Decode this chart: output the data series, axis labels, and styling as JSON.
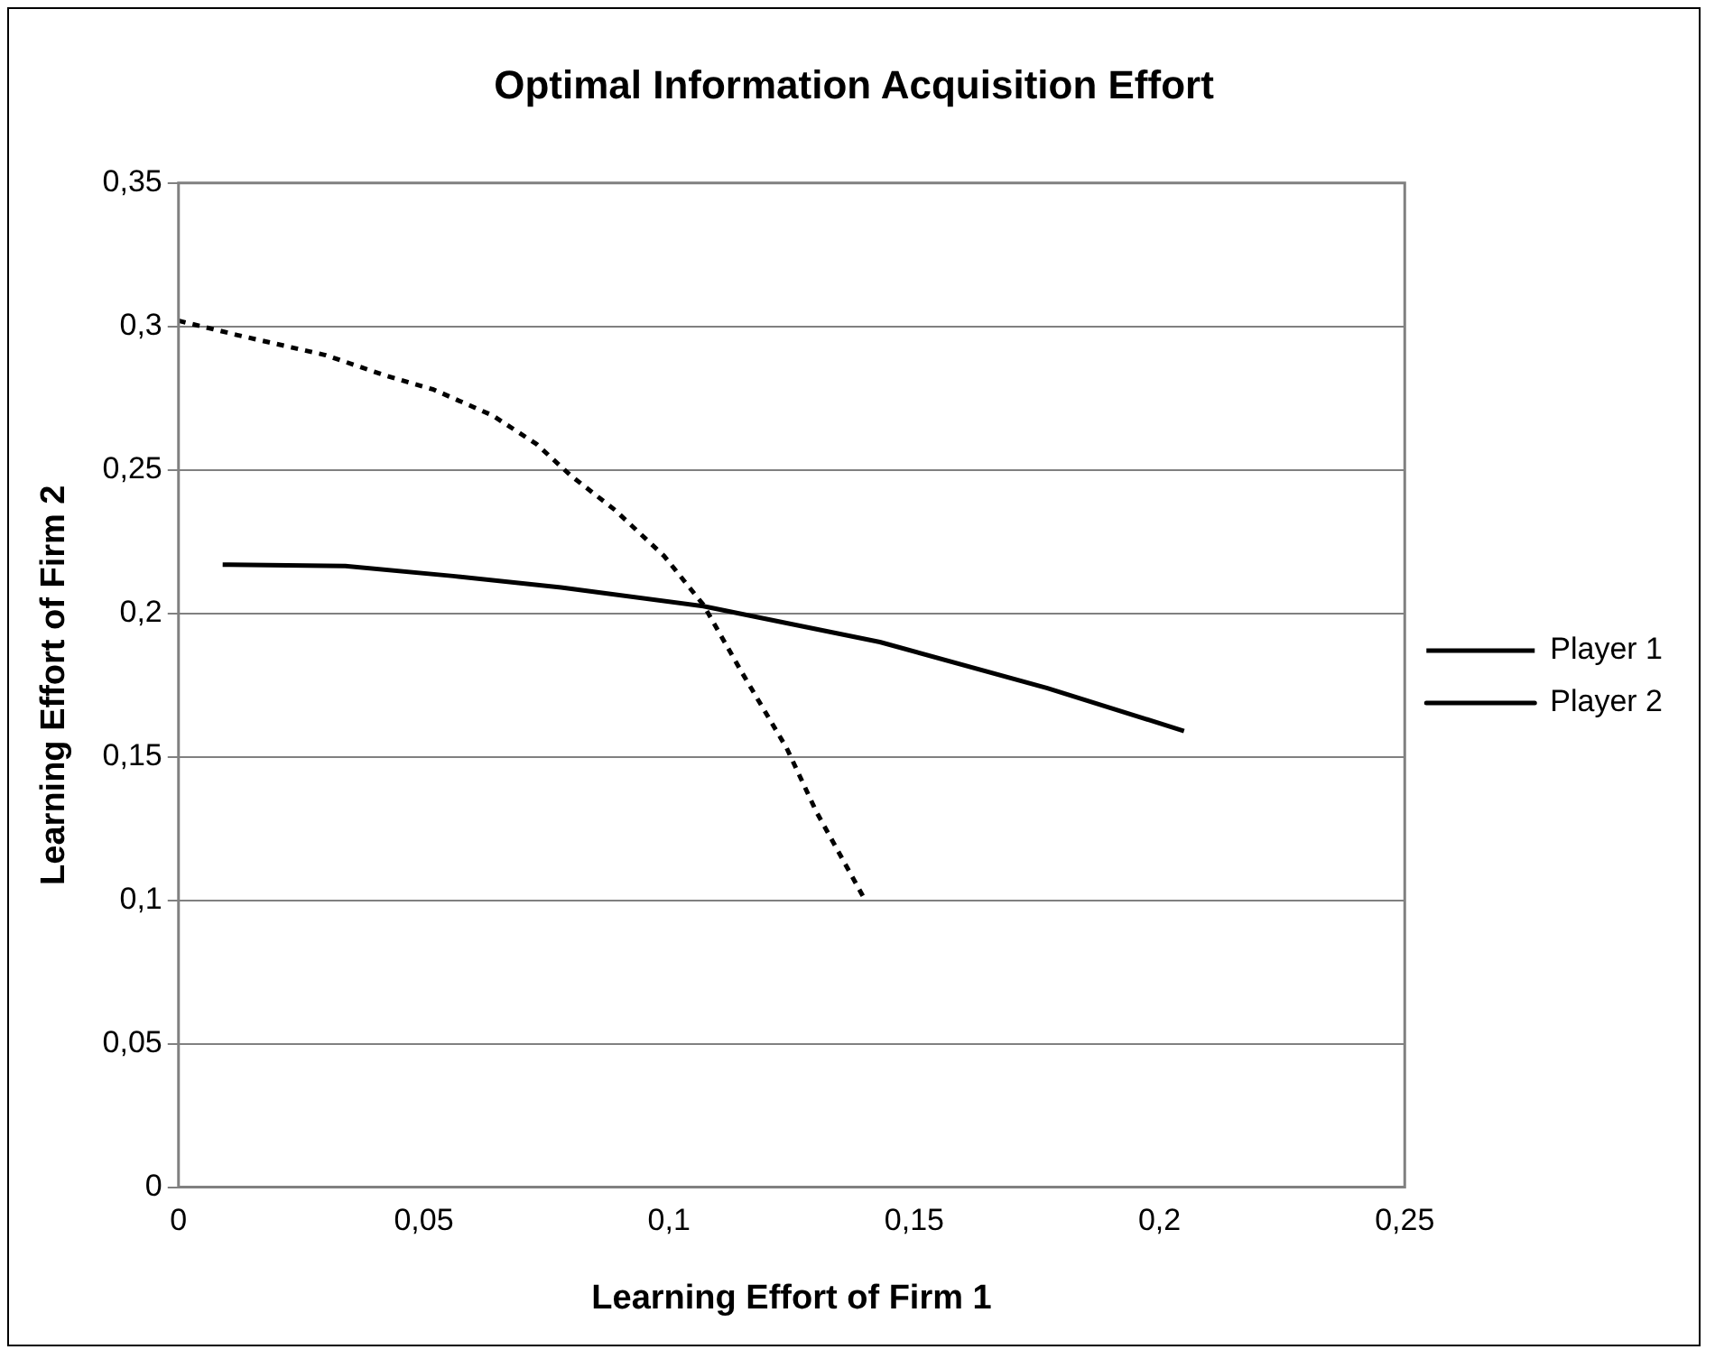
{
  "chart_data": {
    "type": "line",
    "title": "Optimal Information Acquisition Effort",
    "xlabel": "Learning Effort of Firm 1",
    "ylabel": "Learning Effort of Firm 2",
    "xlim": [
      0,
      0.25
    ],
    "xticks": [
      {
        "value": 0,
        "label": "0"
      },
      {
        "value": 0.05,
        "label": "0,05"
      },
      {
        "value": 0.1,
        "label": "0,1"
      },
      {
        "value": 0.15,
        "label": "0,15"
      },
      {
        "value": 0.2,
        "label": "0,2"
      },
      {
        "value": 0.25,
        "label": "0,25"
      }
    ],
    "ylim": [
      0,
      0.35
    ],
    "yticks": [
      {
        "value": 0,
        "label": "0"
      },
      {
        "value": 0.05,
        "label": "0,05"
      },
      {
        "value": 0.1,
        "label": "0,1"
      },
      {
        "value": 0.15,
        "label": "0,15"
      },
      {
        "value": 0.2,
        "label": "0,2"
      },
      {
        "value": 0.25,
        "label": "0,25"
      },
      {
        "value": 0.3,
        "label": "0,3"
      },
      {
        "value": 0.35,
        "label": "0,35"
      }
    ],
    "grid": "y",
    "legend": "right",
    "marker": "none",
    "series": [
      {
        "name": "Player 1",
        "color": "#000000",
        "line_style": "dotted",
        "x": [
          0,
          0.012,
          0.03,
          0.042,
          0.052,
          0.064,
          0.073,
          0.08,
          0.089,
          0.099,
          0.107,
          0.115,
          0.124,
          0.13,
          0.14
        ],
        "values": [
          0.302,
          0.297,
          0.29,
          0.283,
          0.278,
          0.269,
          0.259,
          0.248,
          0.236,
          0.22,
          0.203,
          0.179,
          0.153,
          0.131,
          0.1
        ]
      },
      {
        "name": "Player 2",
        "color": "#000000",
        "line_style": "solid",
        "x": [
          0.009,
          0.034,
          0.056,
          0.078,
          0.107,
          0.143,
          0.177,
          0.205
        ],
        "values": [
          0.217,
          0.2165,
          0.213,
          0.209,
          0.2025,
          0.19,
          0.174,
          0.159
        ]
      }
    ]
  }
}
